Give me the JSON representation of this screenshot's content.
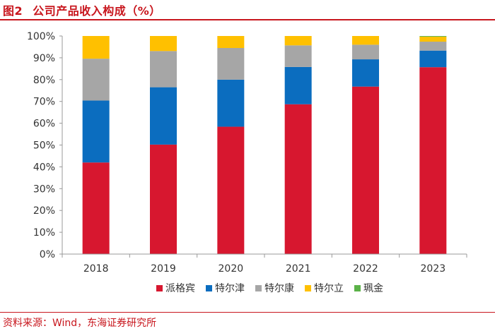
{
  "header": {
    "figure_label": "图2",
    "title": "公司产品收入构成（%）"
  },
  "footer": {
    "source": "资料来源：Wind，东海证券研究所"
  },
  "chart_data": {
    "type": "bar",
    "stacked": true,
    "categories": [
      "2018",
      "2019",
      "2020",
      "2021",
      "2022",
      "2023"
    ],
    "series": [
      {
        "name": "派格宾",
        "color": "#d7172f",
        "values": [
          42.0,
          50.2,
          58.4,
          68.7,
          76.8,
          85.7
        ]
      },
      {
        "name": "特尔津",
        "color": "#0b6dbf",
        "values": [
          28.4,
          26.3,
          21.6,
          17.1,
          12.5,
          7.6
        ]
      },
      {
        "name": "特尔康",
        "color": "#a6a6a6",
        "values": [
          19.2,
          16.6,
          14.5,
          9.9,
          6.7,
          4.1
        ]
      },
      {
        "name": "特尔立",
        "color": "#ffc000",
        "values": [
          10.4,
          6.9,
          5.5,
          4.3,
          4.0,
          2.3
        ]
      },
      {
        "name": "珮金",
        "color": "#5bb248",
        "values": [
          0,
          0,
          0,
          0,
          0,
          0.3
        ]
      }
    ],
    "yticks": [
      "0%",
      "10%",
      "20%",
      "30%",
      "40%",
      "50%",
      "60%",
      "70%",
      "80%",
      "90%",
      "100%"
    ],
    "ylim": [
      0,
      100
    ],
    "grid": false,
    "legend_position": "bottom"
  }
}
